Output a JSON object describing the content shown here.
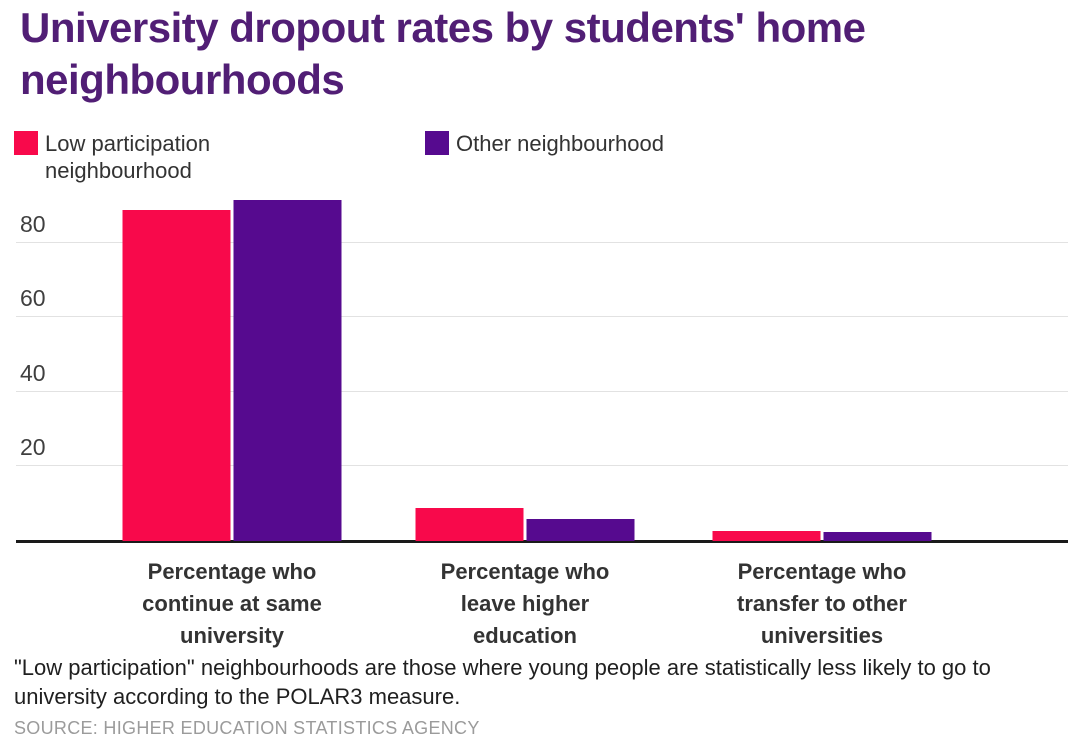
{
  "title": "University dropout rates by students' home neighbourhoods",
  "footnote": "\"Low participation\" neighbourhoods are those where young people are statistically less likely to go to university according to the POLAR3 measure.",
  "source": "SOURCE: HIGHER EDUCATION STATISTICS AGENCY",
  "colors": {
    "title": "#511E75",
    "low_participation": "#F8094B",
    "other": "#560A8F",
    "gridline": "#E2E2E2",
    "axis_line": "#1A1A1A",
    "tick_label": "#3F3F3F",
    "category_label": "#333333",
    "source_text": "#9B9B9B"
  },
  "chart_data": {
    "type": "bar",
    "title": "University dropout rates by students' home neighbourhoods",
    "categories": [
      "Percentage who continue at same university",
      "Percentage who leave higher education",
      "Percentage who transfer to other universities"
    ],
    "category_label_lines": [
      [
        "Percentage who",
        "continue at same",
        "university"
      ],
      [
        "Percentage who",
        "leave higher",
        "education"
      ],
      [
        "Percentage who",
        "transfer to other",
        "universities"
      ]
    ],
    "series": [
      {
        "name": "Low participation neighbourhood",
        "color": "#F8094B",
        "values": [
          88.8,
          8.9,
          2.7
        ]
      },
      {
        "name": "Other neighbourhood",
        "color": "#560A8F",
        "values": [
          91.4,
          6.0,
          2.4
        ]
      }
    ],
    "xlabel": "",
    "ylabel": "",
    "unit": "percent",
    "yticks": [
      20,
      40,
      60,
      80
    ],
    "ylim": [
      0,
      100
    ],
    "grid": true,
    "legend_position": "top"
  }
}
